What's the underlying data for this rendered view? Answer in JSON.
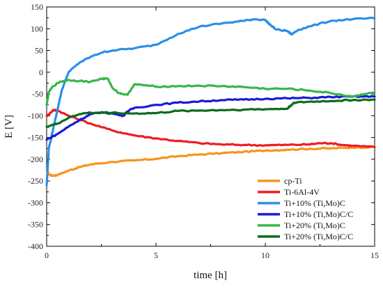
{
  "chart_data": {
    "type": "line",
    "title": "",
    "xlabel": "time [h]",
    "ylabel": "E [V]",
    "xlim": [
      0,
      15
    ],
    "ylim": [
      -400,
      150
    ],
    "x_ticks": [
      0,
      5,
      10,
      15
    ],
    "y_ticks": [
      -400,
      -350,
      -300,
      -250,
      -200,
      -150,
      -100,
      -50,
      0,
      50,
      100,
      150
    ],
    "grid": false,
    "legend_position": "lower-right",
    "series": [
      {
        "name": "cp-Ti",
        "color": "#f7941d",
        "points": [
          [
            0,
            -225
          ],
          [
            0.1,
            -235
          ],
          [
            0.3,
            -238
          ],
          [
            0.5,
            -236
          ],
          [
            1,
            -226
          ],
          [
            1.5,
            -218
          ],
          [
            2,
            -212
          ],
          [
            3,
            -206
          ],
          [
            4,
            -203
          ],
          [
            5,
            -199
          ],
          [
            6,
            -193
          ],
          [
            7,
            -189
          ],
          [
            8,
            -186
          ],
          [
            9,
            -183
          ],
          [
            10,
            -180
          ],
          [
            11,
            -178
          ],
          [
            12,
            -176
          ],
          [
            13,
            -175
          ],
          [
            14,
            -173
          ],
          [
            15,
            -172
          ]
        ]
      },
      {
        "name": "Ti-6Al-4V",
        "color": "#ed1c24",
        "points": [
          [
            0,
            -100
          ],
          [
            0.1,
            -97
          ],
          [
            0.3,
            -87
          ],
          [
            0.5,
            -88
          ],
          [
            1,
            -100
          ],
          [
            2,
            -118
          ],
          [
            3,
            -134
          ],
          [
            4,
            -145
          ],
          [
            5,
            -152
          ],
          [
            6,
            -158
          ],
          [
            7,
            -163
          ],
          [
            8,
            -166
          ],
          [
            9,
            -167
          ],
          [
            10,
            -168
          ],
          [
            11,
            -167
          ],
          [
            12,
            -166
          ],
          [
            12.5,
            -163
          ],
          [
            13,
            -163
          ],
          [
            13.5,
            -167
          ],
          [
            14,
            -169
          ],
          [
            15,
            -172
          ]
        ]
      },
      {
        "name": "Ti+10% (Ti,Mo)C",
        "color": "#2b8fe8",
        "points": [
          [
            0,
            -260
          ],
          [
            0.1,
            -175
          ],
          [
            0.3,
            -130
          ],
          [
            0.5,
            -85
          ],
          [
            0.7,
            -40
          ],
          [
            1,
            0
          ],
          [
            1.5,
            22
          ],
          [
            2,
            35
          ],
          [
            2.5,
            45
          ],
          [
            3,
            50
          ],
          [
            4,
            55
          ],
          [
            5,
            63
          ],
          [
            6,
            88
          ],
          [
            7,
            105
          ],
          [
            8,
            112
          ],
          [
            9,
            118
          ],
          [
            9.5,
            122
          ],
          [
            10,
            120
          ],
          [
            10.2,
            110
          ],
          [
            10.5,
            98
          ],
          [
            11,
            95
          ],
          [
            11.2,
            87
          ],
          [
            11.5,
            97
          ],
          [
            12,
            105
          ],
          [
            13,
            118
          ],
          [
            14,
            122
          ],
          [
            15,
            124
          ]
        ]
      },
      {
        "name": "Ti+10% (Ti,Mo)C/C",
        "color": "#1a1ad6",
        "points": [
          [
            0,
            -155
          ],
          [
            0.5,
            -142
          ],
          [
            1,
            -125
          ],
          [
            1.5,
            -110
          ],
          [
            2,
            -97
          ],
          [
            2.5,
            -92
          ],
          [
            3,
            -95
          ],
          [
            3.5,
            -100
          ],
          [
            3.7,
            -90
          ],
          [
            4,
            -82
          ],
          [
            5,
            -75
          ],
          [
            6,
            -70
          ],
          [
            7,
            -67
          ],
          [
            8,
            -64
          ],
          [
            9,
            -63
          ],
          [
            10,
            -61
          ],
          [
            11,
            -60
          ],
          [
            12,
            -59
          ],
          [
            13,
            -57
          ],
          [
            14,
            -56
          ],
          [
            15,
            -56
          ]
        ]
      },
      {
        "name": "Ti+20% (Ti,Mo)C",
        "color": "#39b54a",
        "points": [
          [
            0,
            -75
          ],
          [
            0.1,
            -45
          ],
          [
            0.3,
            -32
          ],
          [
            0.6,
            -22
          ],
          [
            1,
            -18
          ],
          [
            1.5,
            -20
          ],
          [
            2,
            -22
          ],
          [
            2.5,
            -15
          ],
          [
            2.8,
            -15
          ],
          [
            3,
            -35
          ],
          [
            3.3,
            -48
          ],
          [
            3.7,
            -52
          ],
          [
            4,
            -28
          ],
          [
            4.5,
            -30
          ],
          [
            5,
            -33
          ],
          [
            6,
            -32
          ],
          [
            7,
            -31
          ],
          [
            8,
            -32
          ],
          [
            9,
            -34
          ],
          [
            10,
            -38
          ],
          [
            11,
            -38
          ],
          [
            12,
            -42
          ],
          [
            13,
            -48
          ],
          [
            14,
            -56
          ],
          [
            14.5,
            -50
          ],
          [
            15,
            -47
          ]
        ]
      },
      {
        "name": "Ti+20% (Ti,Mo)C/C",
        "color": "#0b6b1f",
        "points": [
          [
            0,
            -125
          ],
          [
            0.5,
            -118
          ],
          [
            1,
            -105
          ],
          [
            1.5,
            -96
          ],
          [
            2,
            -93
          ],
          [
            3,
            -93
          ],
          [
            4,
            -95
          ],
          [
            5,
            -94
          ],
          [
            6,
            -89
          ],
          [
            7,
            -88
          ],
          [
            8,
            -87
          ],
          [
            9,
            -86
          ],
          [
            10,
            -85
          ],
          [
            11,
            -84
          ],
          [
            11.3,
            -70
          ],
          [
            12,
            -68
          ],
          [
            13,
            -66
          ],
          [
            14,
            -64
          ],
          [
            15,
            -63
          ]
        ]
      }
    ]
  }
}
